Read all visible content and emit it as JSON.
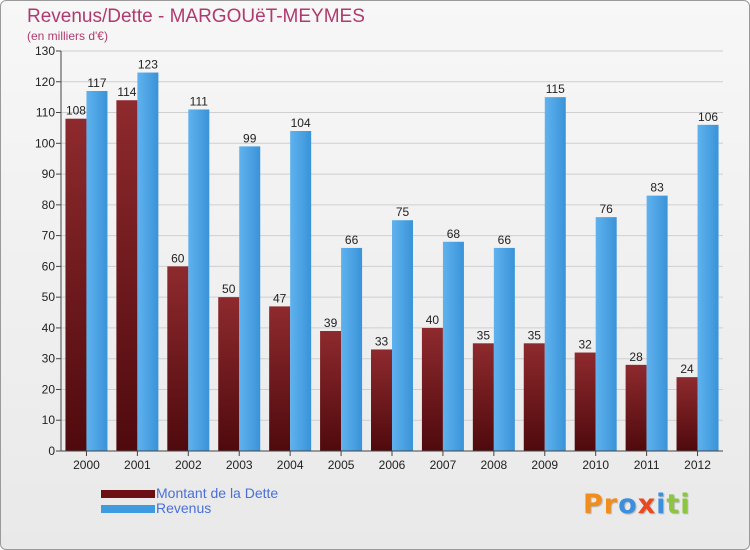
{
  "header": {
    "title": "Revenus/Dette - MARGOUëT-MEYMES",
    "subtitle": "(en milliers d'€)"
  },
  "chart_data": {
    "type": "bar",
    "title": "Revenus/Dette - MARGOUëT-MEYMES",
    "ylabel": "(en milliers d'€)",
    "xlabel": "",
    "ylim": [
      0,
      130
    ],
    "yticks": [
      0,
      10,
      20,
      30,
      40,
      50,
      60,
      70,
      80,
      90,
      100,
      110,
      120,
      130
    ],
    "grid": true,
    "categories": [
      "2000",
      "2001",
      "2002",
      "2003",
      "2004",
      "2005",
      "2006",
      "2007",
      "2008",
      "2009",
      "2010",
      "2011",
      "2012"
    ],
    "series": [
      {
        "name": "Montant de la Dette",
        "color": "#7a1c22",
        "values": [
          108,
          114,
          60,
          50,
          47,
          39,
          33,
          40,
          35,
          35,
          32,
          28,
          24
        ]
      },
      {
        "name": "Revenus",
        "color": "#4aa3e6",
        "values": [
          117,
          123,
          111,
          99,
          104,
          66,
          75,
          68,
          66,
          115,
          76,
          83,
          106
        ]
      }
    ],
    "legend_position": "bottom-left"
  },
  "legend": {
    "items": [
      {
        "label": "Montant de la Dette",
        "color": "#6b0f14"
      },
      {
        "label": "Revenus",
        "color": "#3f9be0"
      }
    ]
  },
  "logo": {
    "letters": [
      {
        "char": "P",
        "color": "#f28c1a"
      },
      {
        "char": "r",
        "color": "#f28c1a"
      },
      {
        "char": "o",
        "color": "#3c8fdc"
      },
      {
        "char": "x",
        "color": "#e84a1e"
      },
      {
        "char": "i",
        "color": "#3c8fdc"
      },
      {
        "char": "t",
        "color": "#8cc63f"
      },
      {
        "char": "i",
        "color": "#8cc63f"
      }
    ]
  }
}
